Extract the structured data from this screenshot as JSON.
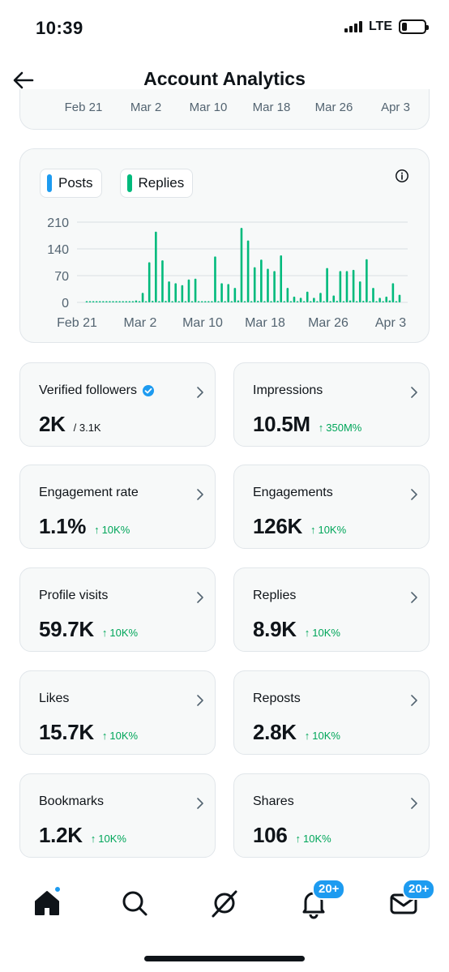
{
  "status_bar": {
    "time": "10:39",
    "network": "LTE"
  },
  "header": {
    "title": "Account Analytics"
  },
  "top_card": {
    "ticks": [
      "Feb 21",
      "Mar 2",
      "Mar 10",
      "Mar 18",
      "Mar 26",
      "Apr 3"
    ]
  },
  "chart_data": {
    "type": "bar",
    "series": [
      {
        "name": "Posts",
        "color": "#1d9bf0",
        "values": []
      },
      {
        "name": "Replies",
        "color": "#00ba7c",
        "values": [
          0,
          0,
          0,
          0,
          0,
          0,
          0,
          0,
          0,
          0,
          0,
          0,
          0,
          0,
          0,
          5,
          1,
          25,
          3,
          105,
          4,
          185,
          3,
          110,
          4,
          55,
          2,
          50,
          3,
          45,
          2,
          60,
          3,
          62,
          2,
          0,
          1,
          0,
          2,
          120,
          3,
          50,
          2,
          48,
          1,
          38,
          5,
          195,
          2,
          162,
          1,
          92,
          4,
          112,
          2,
          88,
          3,
          82,
          4,
          123,
          1,
          38,
          0,
          15,
          1,
          12,
          2,
          28,
          3,
          12,
          0,
          25,
          0,
          90,
          3,
          18,
          4,
          82,
          2,
          82,
          5,
          85,
          3,
          55,
          4,
          113,
          1,
          38,
          2,
          12,
          3,
          15,
          5,
          50,
          0,
          20
        ]
      }
    ],
    "x_ticks": [
      "Feb 21",
      "Mar 2",
      "Mar 10",
      "Mar 18",
      "Mar 26",
      "Apr 3"
    ],
    "y_ticks": [
      "210",
      "140",
      "70",
      "0"
    ],
    "ylim": [
      0,
      210
    ]
  },
  "metrics": [
    {
      "label": "Verified followers",
      "value": "2K",
      "sub": "/ 3.1K",
      "delta": "",
      "verified": true
    },
    {
      "label": "Impressions",
      "value": "10.5M",
      "sub": "",
      "delta": "350M%"
    },
    {
      "label": "Engagement rate",
      "value": "1.1%",
      "sub": "",
      "delta": "10K%"
    },
    {
      "label": "Engagements",
      "value": "126K",
      "sub": "",
      "delta": "10K%"
    },
    {
      "label": "Profile visits",
      "value": "59.7K",
      "sub": "",
      "delta": "10K%"
    },
    {
      "label": "Replies",
      "value": "8.9K",
      "sub": "",
      "delta": "10K%"
    },
    {
      "label": "Likes",
      "value": "15.7K",
      "sub": "",
      "delta": "10K%"
    },
    {
      "label": "Reposts",
      "value": "2.8K",
      "sub": "",
      "delta": "10K%"
    },
    {
      "label": "Bookmarks",
      "value": "1.2K",
      "sub": "",
      "delta": "10K%"
    },
    {
      "label": "Shares",
      "value": "106",
      "sub": "",
      "delta": "10K%"
    }
  ],
  "nav": {
    "items": [
      {
        "icon": "home-icon"
      },
      {
        "icon": "search-icon"
      },
      {
        "icon": "grok-icon"
      },
      {
        "icon": "notifications-icon",
        "badge": "20+"
      },
      {
        "icon": "messages-icon",
        "badge": "20+"
      }
    ]
  },
  "colors": {
    "accent": "#1d9bf0",
    "positive": "#00a65a",
    "replies": "#00ba7c"
  }
}
